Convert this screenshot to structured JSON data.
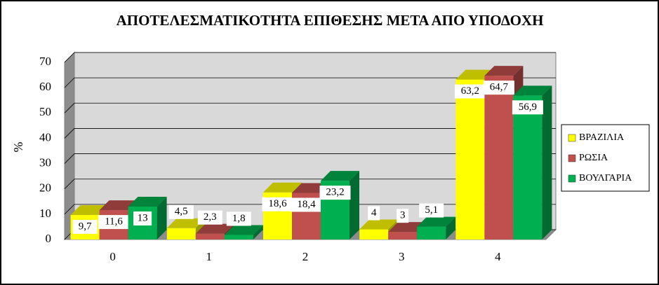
{
  "chart_data": {
    "type": "bar3d",
    "title": "ΑΠΟΤΕΛΕΣΜΑΤΙΚΟΤΗΤΑ ΕΠΙΘΕΣΗΣ ΜΕΤΑ ΑΠΟ ΥΠΟΔΟΧΗ",
    "y_label": "%",
    "categories": [
      "0",
      "1",
      "2",
      "3",
      "4"
    ],
    "series": [
      {
        "name": "ΒΡΑΖΙΛΙΑ",
        "color": "#ffff00",
        "values": [
          9.7,
          4.5,
          18.6,
          4,
          63.2
        ],
        "value_labels": [
          "9,7",
          "4,5",
          "18,6",
          "4",
          "63,2"
        ]
      },
      {
        "name": "ΡΩΣΙΑ",
        "color": "#c0504d",
        "values": [
          11.6,
          2.3,
          18.4,
          3,
          64.7
        ],
        "value_labels": [
          "11,6",
          "2,3",
          "18,4",
          "3",
          "64,7"
        ]
      },
      {
        "name": "ΒΟΥΛΓΑΡΙΑ",
        "color": "#00b050",
        "values": [
          13,
          1.8,
          23.2,
          5.1,
          56.9
        ],
        "value_labels": [
          "13",
          "1,8",
          "23,2",
          "5,1",
          "56,9"
        ]
      }
    ],
    "ylim": [
      0,
      70
    ],
    "yticks": [
      0,
      10,
      20,
      30,
      40,
      50,
      60,
      70
    ],
    "grid": true,
    "legend": "right"
  }
}
